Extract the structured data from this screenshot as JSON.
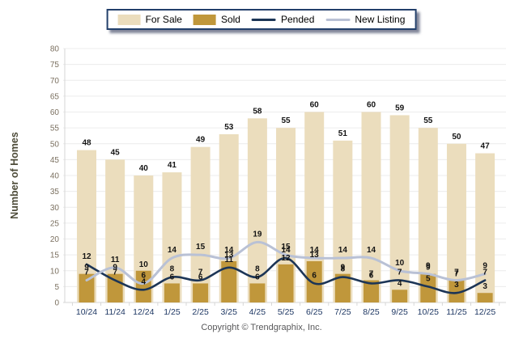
{
  "legend": {
    "items": [
      {
        "label": "For Sale",
        "swatch": "bar",
        "color": "#EBDDBD"
      },
      {
        "label": "Sold",
        "swatch": "bar",
        "color": "#C0973B"
      },
      {
        "label": "Pended",
        "swatch": "line",
        "color": "#1C3556"
      },
      {
        "label": "New Listing",
        "swatch": "line",
        "color": "#B9C1D5"
      }
    ]
  },
  "chart_data": {
    "type": "combo",
    "categories": [
      "10/24",
      "11/24",
      "12/24",
      "1/25",
      "2/25",
      "3/25",
      "4/25",
      "5/25",
      "6/25",
      "7/25",
      "8/25",
      "9/25",
      "10/25",
      "11/25",
      "12/25"
    ],
    "series": [
      {
        "name": "For Sale",
        "type": "bar",
        "color": "#EBDDBD",
        "values": [
          48,
          45,
          40,
          41,
          49,
          53,
          58,
          55,
          60,
          51,
          60,
          59,
          55,
          50,
          47
        ]
      },
      {
        "name": "Sold",
        "type": "bar",
        "color": "#C0973B",
        "values": [
          9,
          9,
          10,
          6,
          6,
          13,
          6,
          12,
          13,
          9,
          7,
          4,
          9,
          7,
          3
        ]
      },
      {
        "name": "Pended",
        "type": "line",
        "color": "#1C3556",
        "values": [
          12,
          7,
          4,
          8,
          7,
          11,
          8,
          14,
          6,
          8,
          6,
          7,
          5,
          3,
          7
        ]
      },
      {
        "name": "New Listing",
        "type": "line",
        "color": "#B9C1D5",
        "values": [
          7,
          11,
          6,
          14,
          15,
          14,
          19,
          15,
          14,
          14,
          14,
          10,
          9,
          7,
          9
        ]
      }
    ],
    "title": "",
    "xlabel": "",
    "ylabel": "Number of Homes",
    "ylim": [
      0,
      80
    ],
    "ytick_step": 5,
    "grid": true,
    "legend_position": "top",
    "colors": {
      "y_tick_label": "#7B7060",
      "x_tick_label": "#1F3864",
      "axis_title": "#4D4B38",
      "data_label": "#141414",
      "gridline": "#ECECEC",
      "axis_line": "#D6D6D6"
    }
  },
  "footer": {
    "text": "Copyright © Trendgraphix, Inc."
  }
}
